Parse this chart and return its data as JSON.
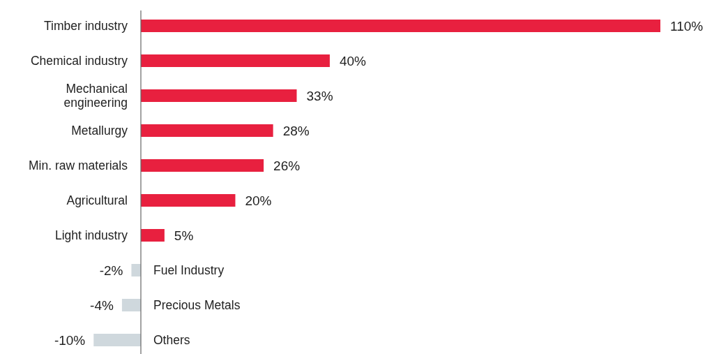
{
  "chart_data": {
    "type": "bar",
    "orientation": "horizontal",
    "categories": [
      "Timber industry",
      "Chemical industry",
      "Mechanical engineering",
      "Metallurgy",
      "Min. raw materials",
      "Agricultural",
      "Light industry",
      "Fuel Industry",
      "Precious Metals",
      "Others"
    ],
    "values": [
      110,
      40,
      33,
      28,
      26,
      20,
      5,
      -2,
      -4,
      -10
    ],
    "value_labels": [
      "110%",
      "40%",
      "33%",
      "28%",
      "26%",
      "20%",
      "5%",
      "-2%",
      "-4%",
      "-10%"
    ],
    "colors": [
      "#e8203f",
      "#e8203f",
      "#e8203f",
      "#e8203f",
      "#e8203f",
      "#e8203f",
      "#e8203f",
      "#cfd8dd",
      "#cfd8dd",
      "#cfd8dd"
    ]
  }
}
